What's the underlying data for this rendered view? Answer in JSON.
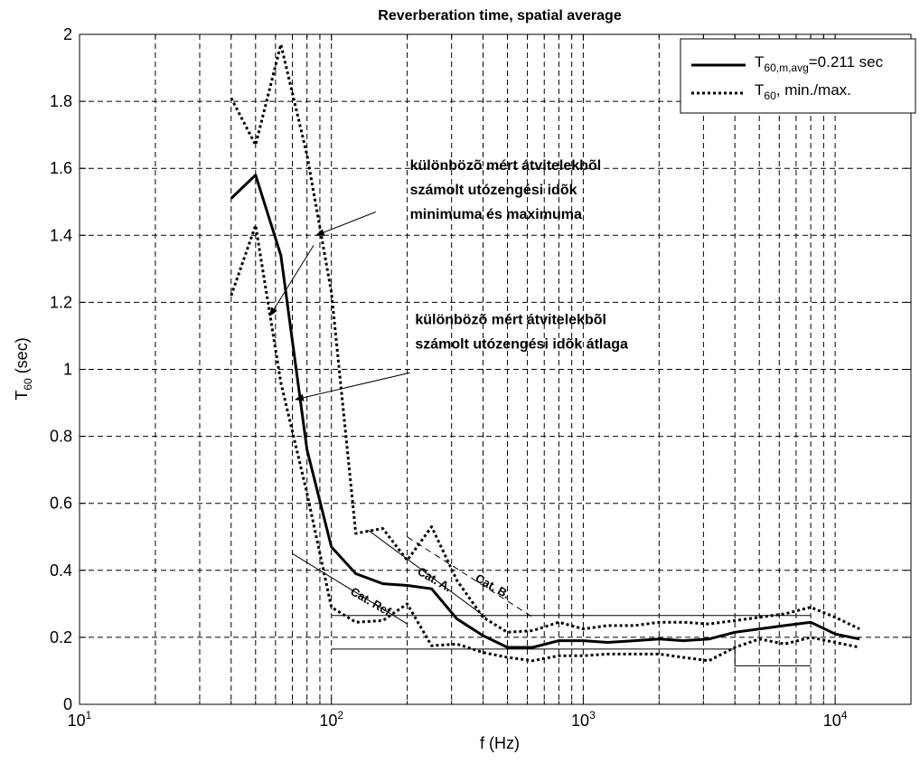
{
  "chart_data": {
    "type": "line",
    "title": "Reverberation time, spatial average",
    "xlabel": "f (Hz)",
    "ylabel": {
      "main": "T",
      "sub": "60",
      "tail": " (sec)"
    },
    "xscale": "log",
    "xlim": [
      10,
      20000
    ],
    "ylim": [
      0,
      2
    ],
    "grid": true,
    "legend_position": "top-right",
    "x_ticks": [
      {
        "value": 10,
        "base": "10",
        "exp": "1"
      },
      {
        "value": 100,
        "base": "10",
        "exp": "2"
      },
      {
        "value": 1000,
        "base": "10",
        "exp": "3"
      },
      {
        "value": 10000,
        "base": "10",
        "exp": "4"
      }
    ],
    "y_ticks": [
      {
        "value": 0,
        "label": "0"
      },
      {
        "value": 0.2,
        "label": "0.2"
      },
      {
        "value": 0.4,
        "label": "0.4"
      },
      {
        "value": 0.6,
        "label": "0.6"
      },
      {
        "value": 0.8,
        "label": "0.8"
      },
      {
        "value": 1.0,
        "label": "1"
      },
      {
        "value": 1.2,
        "label": "1.2"
      },
      {
        "value": 1.4,
        "label": "1.4"
      },
      {
        "value": 1.6,
        "label": "1.6"
      },
      {
        "value": 1.8,
        "label": "1.8"
      },
      {
        "value": 2.0,
        "label": "2"
      }
    ],
    "x": [
      40,
      50,
      63,
      80,
      100,
      125,
      160,
      200,
      250,
      315,
      400,
      500,
      630,
      800,
      1000,
      1250,
      1600,
      2000,
      2500,
      3150,
      4000,
      5000,
      6300,
      8000,
      10000,
      12500
    ],
    "series": [
      {
        "legend_main": "T",
        "legend_sub": "60,m,avg",
        "legend_tail": "=0.211 sec",
        "style": "solid",
        "values": [
          1.51,
          1.58,
          1.34,
          0.76,
          0.47,
          0.39,
          0.36,
          0.355,
          0.345,
          0.255,
          0.205,
          0.17,
          0.17,
          0.19,
          0.19,
          0.185,
          0.19,
          0.195,
          0.19,
          0.195,
          0.215,
          0.225,
          0.235,
          0.245,
          0.21,
          0.195
        ]
      },
      {
        "legend_main": "T",
        "legend_sub": "60",
        "legend_tail": ", min./max.",
        "style": "dotted",
        "values": [
          1.81,
          1.67,
          1.97,
          1.64,
          1.23,
          0.51,
          0.525,
          0.43,
          0.53,
          0.37,
          0.26,
          0.215,
          0.22,
          0.245,
          0.225,
          0.235,
          0.235,
          0.245,
          0.245,
          0.24,
          0.25,
          0.26,
          0.27,
          0.29,
          0.26,
          0.225
        ]
      },
      {
        "style": "dotted",
        "values": [
          1.22,
          1.43,
          0.96,
          0.63,
          0.29,
          0.245,
          0.25,
          0.3,
          0.175,
          0.18,
          0.155,
          0.14,
          0.13,
          0.145,
          0.145,
          0.15,
          0.15,
          0.15,
          0.14,
          0.13,
          0.17,
          0.195,
          0.18,
          0.2,
          0.185,
          0.17
        ]
      }
    ],
    "reference_lines": [
      {
        "style": "solid",
        "points": [
          [
            70,
            0.45
          ],
          [
            200,
            0.24
          ]
        ]
      },
      {
        "style": "solid",
        "points": [
          [
            100,
            0.265
          ],
          [
            8000,
            0.265
          ]
        ]
      },
      {
        "style": "solid",
        "points": [
          [
            100,
            0.165
          ],
          [
            4000,
            0.165
          ],
          [
            4000,
            0.115
          ],
          [
            8000,
            0.115
          ]
        ]
      },
      {
        "style": "solid",
        "points": [
          [
            140,
            0.52
          ],
          [
            410,
            0.26
          ]
        ]
      },
      {
        "style": "dashed",
        "points": [
          [
            200,
            0.5
          ],
          [
            630,
            0.26
          ]
        ]
      }
    ],
    "category_labels": [
      {
        "text": "Cat. Ref.",
        "x": 118,
        "y": 0.33,
        "angle": 30
      },
      {
        "text": "Cat. A.",
        "x": 218,
        "y": 0.39,
        "angle": 30
      },
      {
        "text": "Cat. B.",
        "x": 370,
        "y": 0.37,
        "angle": 30
      }
    ],
    "annotations": [
      {
        "lines": [
          "különbözõ mért átvitelekbõl",
          "számolt utózengési idõk",
          "minimuma és maximuma"
        ],
        "text_x": 205,
        "text_y": 1.595,
        "arrows": [
          {
            "from": [
              85,
              1.37
            ],
            "to": [
              57,
              1.16
            ]
          },
          {
            "from": [
              150,
              1.47
            ],
            "to": [
              87,
              1.4
            ]
          }
        ]
      },
      {
        "lines": [
          "különbözõ mért átvitelekbõl",
          "számolt utózengési idõk átlaga"
        ],
        "text_x": 215,
        "text_y": 1.135,
        "arrows": [
          {
            "from": [
              205,
              0.99
            ],
            "to": [
              72,
              0.91
            ]
          }
        ]
      }
    ]
  }
}
